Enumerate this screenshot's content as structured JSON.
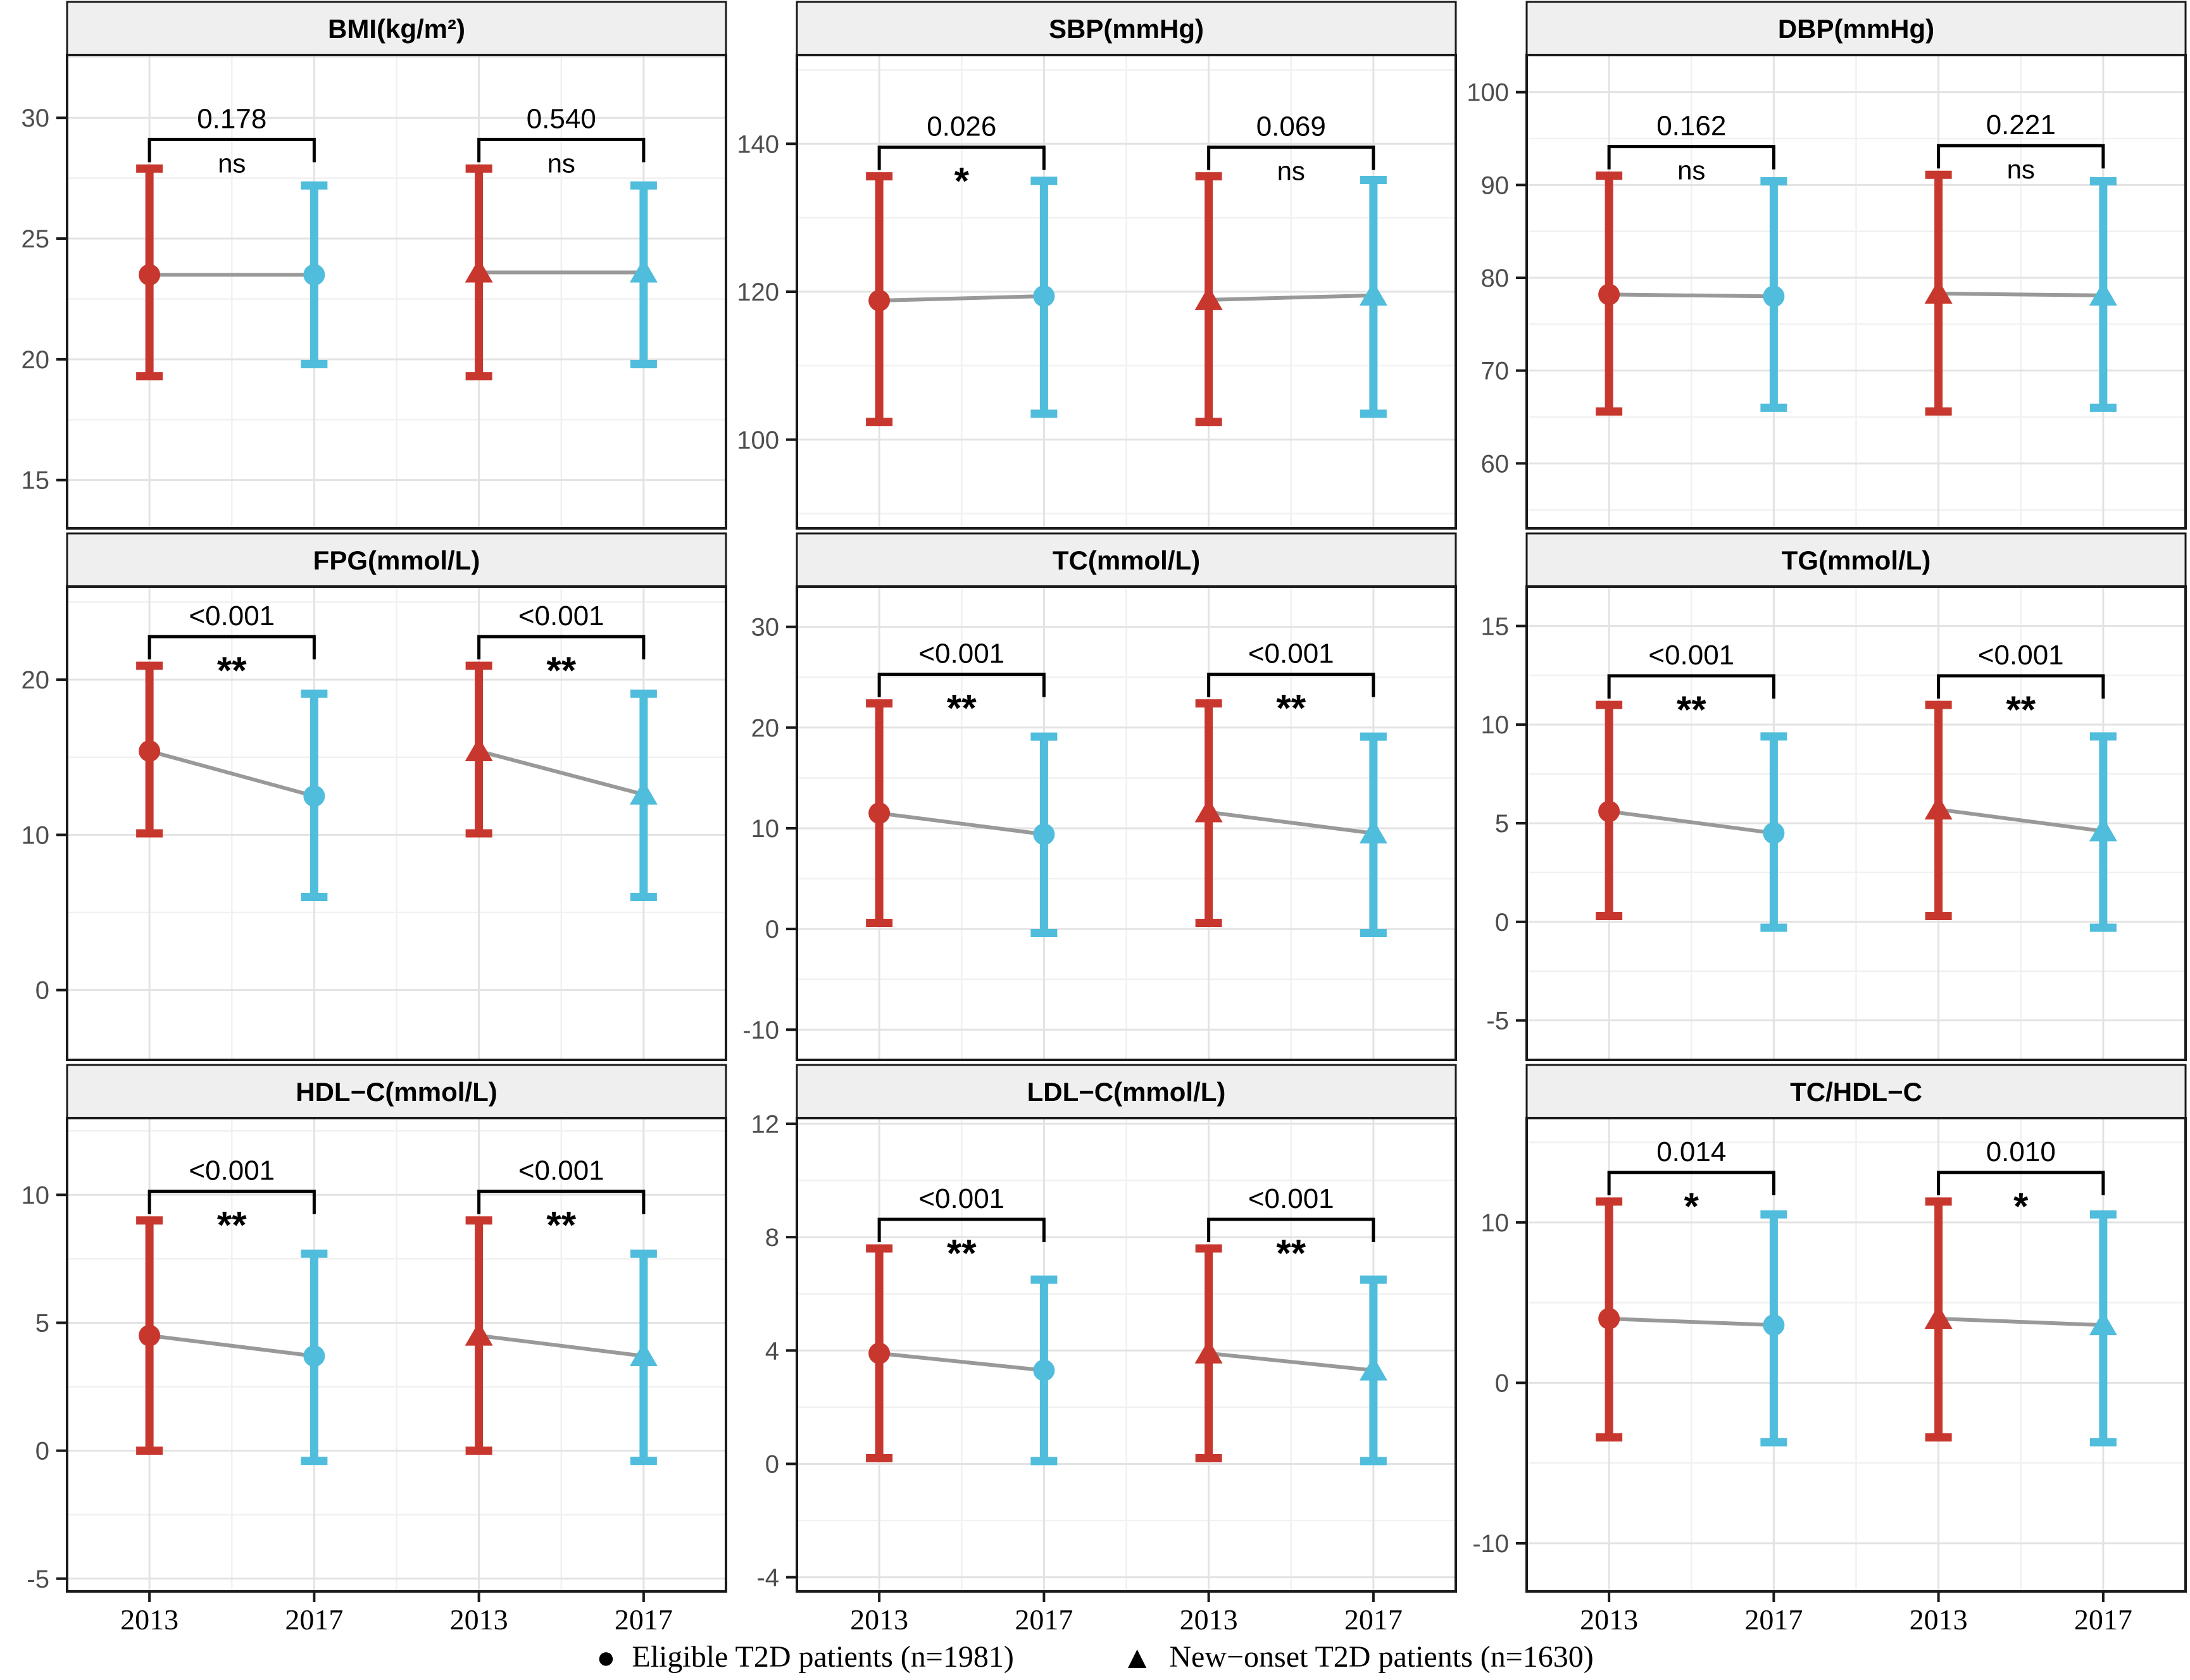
{
  "page": {
    "background": "#ffffff"
  },
  "colors": {
    "year_2013": "#C8372E",
    "year_2017": "#4FBDDB",
    "connector": "#999999",
    "grid_major": "#E3E3E3",
    "grid_minor": "#F1F1F1",
    "panel_border": "#1A1A1A",
    "header_bg": "#EFEFEF",
    "tick_label": "#4d4d4d"
  },
  "x_categories": [
    "2013",
    "2017",
    "2013",
    "2017"
  ],
  "legend": {
    "items": [
      {
        "marker": "circle",
        "label": "Eligible T2D patients (n=1981)"
      },
      {
        "marker": "triangle",
        "label": "New−onset T2D patients (n=1630)"
      }
    ]
  },
  "chart_data": [
    {
      "type": "scatter",
      "title": "BMI(kg/m²)",
      "ylim": [
        13,
        32.6
      ],
      "yticks": [
        15,
        20,
        25,
        30
      ],
      "show_x_labels": false,
      "series": [
        {
          "group": "Eligible T2D patients",
          "year": "2013",
          "marker": "circle",
          "mean": 23.5,
          "lo": 19.3,
          "hi": 27.9
        },
        {
          "group": "Eligible T2D patients",
          "year": "2017",
          "marker": "circle",
          "mean": 23.5,
          "lo": 19.8,
          "hi": 27.2
        },
        {
          "group": "New-onset T2D patients",
          "year": "2013",
          "marker": "triangle",
          "mean": 23.6,
          "lo": 19.3,
          "hi": 27.9
        },
        {
          "group": "New-onset T2D patients",
          "year": "2017",
          "marker": "triangle",
          "mean": 23.6,
          "lo": 19.8,
          "hi": 27.2
        }
      ],
      "comparisons": [
        {
          "p": "0.178",
          "sig": "ns"
        },
        {
          "p": "0.540",
          "sig": "ns"
        }
      ]
    },
    {
      "type": "scatter",
      "title": "SBP(mmHg)",
      "ylim": [
        88,
        152
      ],
      "yticks": [
        100,
        120,
        140
      ],
      "show_x_labels": false,
      "series": [
        {
          "group": "Eligible T2D patients",
          "year": "2013",
          "marker": "circle",
          "mean": 118.8,
          "lo": 102.4,
          "hi": 135.6
        },
        {
          "group": "Eligible T2D patients",
          "year": "2017",
          "marker": "circle",
          "mean": 119.4,
          "lo": 103.5,
          "hi": 135.0
        },
        {
          "group": "New-onset T2D patients",
          "year": "2013",
          "marker": "triangle",
          "mean": 118.9,
          "lo": 102.4,
          "hi": 135.6
        },
        {
          "group": "New-onset T2D patients",
          "year": "2017",
          "marker": "triangle",
          "mean": 119.5,
          "lo": 103.5,
          "hi": 135.1
        }
      ],
      "comparisons": [
        {
          "p": "0.026",
          "sig": "*"
        },
        {
          "p": "0.069",
          "sig": "ns"
        }
      ]
    },
    {
      "type": "scatter",
      "title": "DBP(mmHg)",
      "ylim": [
        53,
        104
      ],
      "yticks": [
        60,
        70,
        80,
        90,
        100
      ],
      "show_x_labels": false,
      "series": [
        {
          "group": "Eligible T2D patients",
          "year": "2013",
          "marker": "circle",
          "mean": 78.2,
          "lo": 65.6,
          "hi": 91.0
        },
        {
          "group": "Eligible T2D patients",
          "year": "2017",
          "marker": "circle",
          "mean": 78.0,
          "lo": 66.0,
          "hi": 90.4
        },
        {
          "group": "New-onset T2D patients",
          "year": "2013",
          "marker": "triangle",
          "mean": 78.3,
          "lo": 65.6,
          "hi": 91.1
        },
        {
          "group": "New-onset T2D patients",
          "year": "2017",
          "marker": "triangle",
          "mean": 78.1,
          "lo": 66.0,
          "hi": 90.4
        }
      ],
      "comparisons": [
        {
          "p": "0.162",
          "sig": "ns"
        },
        {
          "p": "0.221",
          "sig": "ns"
        }
      ]
    },
    {
      "type": "scatter",
      "title": "FPG(mmol/L)",
      "ylim": [
        -4.5,
        26
      ],
      "yticks": [
        0,
        10,
        20
      ],
      "show_x_labels": false,
      "series": [
        {
          "group": "Eligible T2D patients",
          "year": "2013",
          "marker": "circle",
          "mean": 15.4,
          "lo": 10.1,
          "hi": 20.9
        },
        {
          "group": "Eligible T2D patients",
          "year": "2017",
          "marker": "circle",
          "mean": 12.5,
          "lo": 6.0,
          "hi": 19.1
        },
        {
          "group": "New-onset T2D patients",
          "year": "2013",
          "marker": "triangle",
          "mean": 15.4,
          "lo": 10.1,
          "hi": 20.9
        },
        {
          "group": "New-onset T2D patients",
          "year": "2017",
          "marker": "triangle",
          "mean": 12.6,
          "lo": 6.0,
          "hi": 19.1
        }
      ],
      "comparisons": [
        {
          "p": "<0.001",
          "sig": "**"
        },
        {
          "p": "<0.001",
          "sig": "**"
        }
      ]
    },
    {
      "type": "scatter",
      "title": "TC(mmol/L)",
      "ylim": [
        -13,
        34
      ],
      "yticks": [
        -10,
        0,
        10,
        20,
        30
      ],
      "show_x_labels": false,
      "series": [
        {
          "group": "Eligible T2D patients",
          "year": "2013",
          "marker": "circle",
          "mean": 11.5,
          "lo": 0.6,
          "hi": 22.4
        },
        {
          "group": "Eligible T2D patients",
          "year": "2017",
          "marker": "circle",
          "mean": 9.4,
          "lo": -0.4,
          "hi": 19.1
        },
        {
          "group": "New-onset T2D patients",
          "year": "2013",
          "marker": "triangle",
          "mean": 11.6,
          "lo": 0.6,
          "hi": 22.4
        },
        {
          "group": "New-onset T2D patients",
          "year": "2017",
          "marker": "triangle",
          "mean": 9.5,
          "lo": -0.4,
          "hi": 19.1
        }
      ],
      "comparisons": [
        {
          "p": "<0.001",
          "sig": "**"
        },
        {
          "p": "<0.001",
          "sig": "**"
        }
      ]
    },
    {
      "type": "scatter",
      "title": "TG(mmol/L)",
      "ylim": [
        -7,
        17
      ],
      "yticks": [
        -5,
        0,
        5,
        10,
        15
      ],
      "show_x_labels": false,
      "series": [
        {
          "group": "Eligible T2D patients",
          "year": "2013",
          "marker": "circle",
          "mean": 5.6,
          "lo": 0.3,
          "hi": 11.0
        },
        {
          "group": "Eligible T2D patients",
          "year": "2017",
          "marker": "circle",
          "mean": 4.5,
          "lo": -0.3,
          "hi": 9.4
        },
        {
          "group": "New-onset T2D patients",
          "year": "2013",
          "marker": "triangle",
          "mean": 5.7,
          "lo": 0.3,
          "hi": 11.0
        },
        {
          "group": "New-onset T2D patients",
          "year": "2017",
          "marker": "triangle",
          "mean": 4.6,
          "lo": -0.3,
          "hi": 9.4
        }
      ],
      "comparisons": [
        {
          "p": "<0.001",
          "sig": "**"
        },
        {
          "p": "<0.001",
          "sig": "**"
        }
      ]
    },
    {
      "type": "scatter",
      "title": "HDL−C(mmol/L)",
      "ylim": [
        -5.5,
        13
      ],
      "yticks": [
        -5,
        0,
        5,
        10
      ],
      "show_x_labels": true,
      "series": [
        {
          "group": "Eligible T2D patients",
          "year": "2013",
          "marker": "circle",
          "mean": 4.5,
          "lo": 0.0,
          "hi": 9.0
        },
        {
          "group": "Eligible T2D patients",
          "year": "2017",
          "marker": "circle",
          "mean": 3.7,
          "lo": -0.4,
          "hi": 7.7
        },
        {
          "group": "New-onset T2D patients",
          "year": "2013",
          "marker": "triangle",
          "mean": 4.5,
          "lo": 0.0,
          "hi": 9.0
        },
        {
          "group": "New-onset T2D patients",
          "year": "2017",
          "marker": "triangle",
          "mean": 3.7,
          "lo": -0.4,
          "hi": 7.7
        }
      ],
      "comparisons": [
        {
          "p": "<0.001",
          "sig": "**"
        },
        {
          "p": "<0.001",
          "sig": "**"
        }
      ]
    },
    {
      "type": "scatter",
      "title": "LDL−C(mmol/L)",
      "ylim": [
        -4.5,
        12.2
      ],
      "yticks": [
        -4,
        0,
        4,
        8,
        12
      ],
      "show_x_labels": true,
      "series": [
        {
          "group": "Eligible T2D patients",
          "year": "2013",
          "marker": "circle",
          "mean": 3.9,
          "lo": 0.2,
          "hi": 7.6
        },
        {
          "group": "Eligible T2D patients",
          "year": "2017",
          "marker": "circle",
          "mean": 3.3,
          "lo": 0.1,
          "hi": 6.5
        },
        {
          "group": "New-onset T2D patients",
          "year": "2013",
          "marker": "triangle",
          "mean": 3.9,
          "lo": 0.2,
          "hi": 7.6
        },
        {
          "group": "New-onset T2D patients",
          "year": "2017",
          "marker": "triangle",
          "mean": 3.3,
          "lo": 0.1,
          "hi": 6.5
        }
      ],
      "comparisons": [
        {
          "p": "<0.001",
          "sig": "**"
        },
        {
          "p": "<0.001",
          "sig": "**"
        }
      ]
    },
    {
      "type": "scatter",
      "title": "TC/HDL−C",
      "ylim": [
        -13,
        16.5
      ],
      "yticks": [
        -10,
        0,
        10
      ],
      "show_x_labels": true,
      "series": [
        {
          "group": "Eligible T2D patients",
          "year": "2013",
          "marker": "circle",
          "mean": 4.0,
          "lo": -3.4,
          "hi": 11.3
        },
        {
          "group": "Eligible T2D patients",
          "year": "2017",
          "marker": "circle",
          "mean": 3.6,
          "lo": -3.7,
          "hi": 10.5
        },
        {
          "group": "New-onset T2D patients",
          "year": "2013",
          "marker": "triangle",
          "mean": 4.0,
          "lo": -3.4,
          "hi": 11.3
        },
        {
          "group": "New-onset T2D patients",
          "year": "2017",
          "marker": "triangle",
          "mean": 3.6,
          "lo": -3.7,
          "hi": 10.5
        }
      ],
      "comparisons": [
        {
          "p": "0.014",
          "sig": "*"
        },
        {
          "p": "0.010",
          "sig": "*"
        }
      ]
    }
  ]
}
